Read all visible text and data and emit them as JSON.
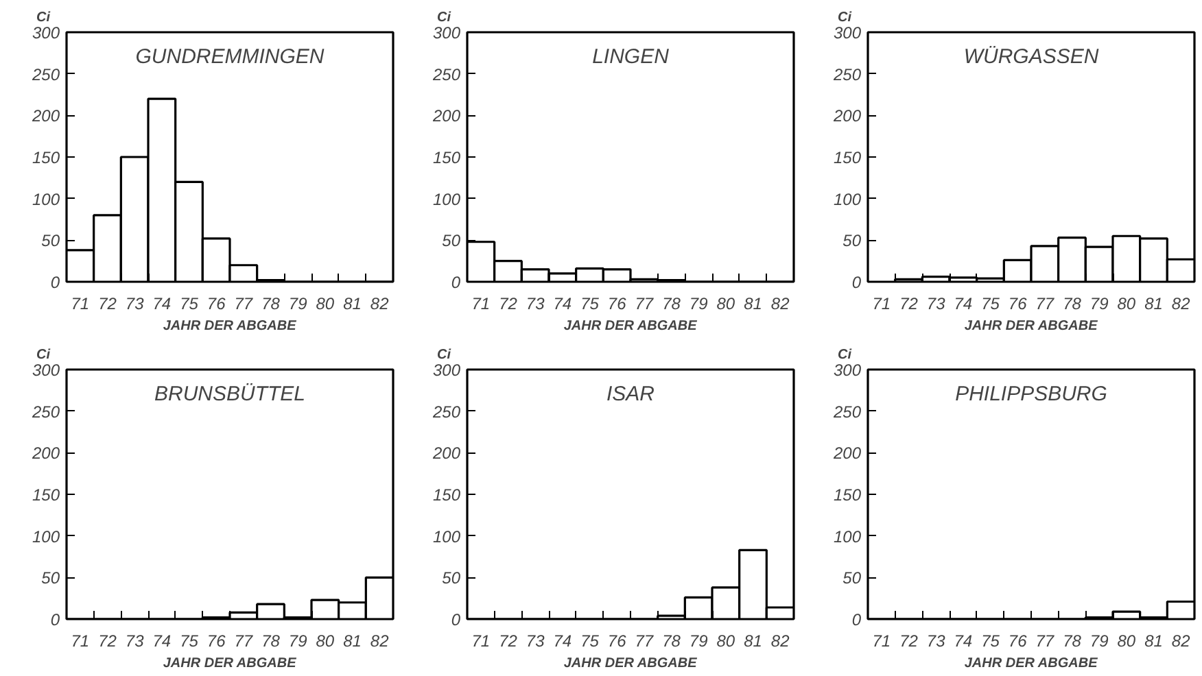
{
  "chart_data": [
    {
      "type": "bar",
      "title": "GUNDREMMINGEN",
      "ylabel": "Ci",
      "xlabel": "JAHR DER ABGABE",
      "categories": [
        "71",
        "72",
        "73",
        "74",
        "75",
        "76",
        "77",
        "78",
        "79",
        "80",
        "81",
        "82"
      ],
      "values": [
        38,
        80,
        150,
        220,
        120,
        52,
        20,
        2,
        0,
        0,
        0,
        0
      ],
      "color": "#ffffff",
      "ylim": [
        0,
        300
      ],
      "yticks": [
        0,
        50,
        100,
        150,
        200,
        250,
        300
      ],
      "grid": false
    },
    {
      "type": "bar",
      "title": "LINGEN",
      "ylabel": "Ci",
      "xlabel": "JAHR DER ABGABE",
      "categories": [
        "71",
        "72",
        "73",
        "74",
        "75",
        "76",
        "77",
        "78",
        "79",
        "80",
        "81",
        "82"
      ],
      "values": [
        48,
        25,
        15,
        10,
        16,
        15,
        3,
        2,
        0,
        0,
        0,
        0
      ],
      "color": "#ffffff",
      "ylim": [
        0,
        300
      ],
      "yticks": [
        0,
        50,
        100,
        150,
        200,
        250,
        300
      ],
      "grid": false
    },
    {
      "type": "bar",
      "title": "WÜRGASSEN",
      "ylabel": "Ci",
      "xlabel": "JAHR DER ABGABE",
      "categories": [
        "71",
        "72",
        "73",
        "74",
        "75",
        "76",
        "77",
        "78",
        "79",
        "80",
        "81",
        "82"
      ],
      "values": [
        null,
        3,
        6,
        5,
        4,
        26,
        43,
        53,
        42,
        55,
        52,
        27
      ],
      "color": "#ffffff",
      "ylim": [
        0,
        300
      ],
      "yticks": [
        0,
        50,
        100,
        150,
        200,
        250,
        300
      ],
      "grid": false
    },
    {
      "type": "bar",
      "title": "BRUNSBÜTTEL",
      "ylabel": "Ci",
      "xlabel": "JAHR DER ABGABE",
      "categories": [
        "71",
        "72",
        "73",
        "74",
        "75",
        "76",
        "77",
        "78",
        "79",
        "80",
        "81",
        "82"
      ],
      "values": [
        0,
        0,
        0,
        0,
        0,
        2,
        8,
        18,
        2,
        23,
        20,
        50
      ],
      "color": "#ffffff",
      "ylim": [
        0,
        300
      ],
      "yticks": [
        0,
        50,
        100,
        150,
        200,
        250,
        300
      ],
      "grid": false
    },
    {
      "type": "bar",
      "title": "ISAR",
      "ylabel": "Ci",
      "xlabel": "JAHR DER ABGABE",
      "categories": [
        "71",
        "72",
        "73",
        "74",
        "75",
        "76",
        "77",
        "78",
        "79",
        "80",
        "81",
        "82"
      ],
      "values": [
        0,
        0,
        0,
        0,
        0,
        0,
        0,
        4,
        26,
        38,
        83,
        14
      ],
      "color": "#ffffff",
      "ylim": [
        0,
        300
      ],
      "yticks": [
        0,
        50,
        100,
        150,
        200,
        250,
        300
      ],
      "grid": false
    },
    {
      "type": "bar",
      "title": "PHILIPPSBURG",
      "ylabel": "Ci",
      "xlabel": "JAHR DER ABGABE",
      "categories": [
        "71",
        "72",
        "73",
        "74",
        "75",
        "76",
        "77",
        "78",
        "79",
        "80",
        "81",
        "82"
      ],
      "values": [
        0,
        0,
        0,
        0,
        0,
        0,
        0,
        0,
        2,
        9,
        2,
        21
      ],
      "color": "#ffffff",
      "ylim": [
        0,
        300
      ],
      "yticks": [
        0,
        50,
        100,
        150,
        200,
        250,
        300
      ],
      "grid": false
    }
  ]
}
